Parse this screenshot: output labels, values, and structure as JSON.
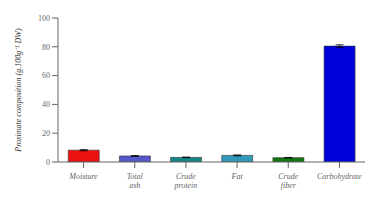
{
  "chart_data": {
    "type": "bar",
    "categories": [
      "Moisture",
      "Total ash",
      "Crude protein",
      "Fat",
      "Crude fiber",
      "Carbohydrate"
    ],
    "values": [
      8.2,
      4.2,
      3.2,
      4.6,
      3.0,
      80.5
    ],
    "errors": [
      0.4,
      0.3,
      0.2,
      0.3,
      0.15,
      0.9
    ],
    "colors": [
      "#ee1111",
      "#5555cc",
      "#118888",
      "#3399bb",
      "#117711",
      "#0000dd"
    ],
    "ylabel": "Proximate composition (g.100g⁻¹ DW)",
    "ylim": [
      0,
      100
    ],
    "yticks": [
      0,
      20,
      40,
      60,
      80,
      100
    ],
    "grid": false
  }
}
